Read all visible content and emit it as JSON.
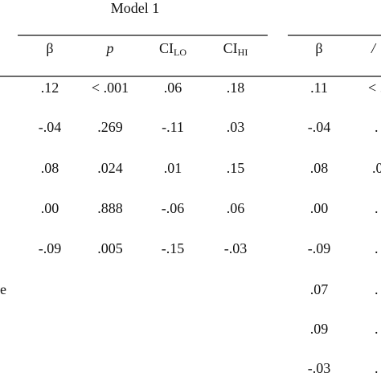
{
  "table": {
    "title": "Model 1",
    "headers": [
      {
        "text": "β"
      },
      {
        "text": "p"
      },
      {
        "text": "CI",
        "sub": "LO"
      },
      {
        "text": "CI",
        "sub": "HI"
      },
      {
        "text": "β"
      },
      {
        "text": "/"
      }
    ],
    "rows": [
      {
        "cells": [
          ".12",
          "< .001",
          ".06",
          ".18",
          ".11",
          "< ."
        ]
      },
      {
        "cells": [
          "-.04",
          ".269",
          "-.11",
          ".03",
          "-.04",
          "."
        ]
      },
      {
        "cells": [
          ".08",
          ".024",
          ".01",
          ".15",
          ".08",
          ".0"
        ]
      },
      {
        "cells": [
          ".00",
          ".888",
          "-.06",
          ".06",
          ".00",
          "."
        ]
      },
      {
        "cells": [
          "-.09",
          ".005",
          "-.15",
          "-.03",
          "-.09",
          "."
        ]
      },
      {
        "label": "e",
        "cells": [
          null,
          null,
          null,
          null,
          ".07",
          "."
        ]
      },
      {
        "cells": [
          null,
          null,
          null,
          null,
          ".09",
          "."
        ]
      },
      {
        "cells": [
          null,
          null,
          null,
          null,
          "-.03",
          "."
        ]
      }
    ]
  }
}
